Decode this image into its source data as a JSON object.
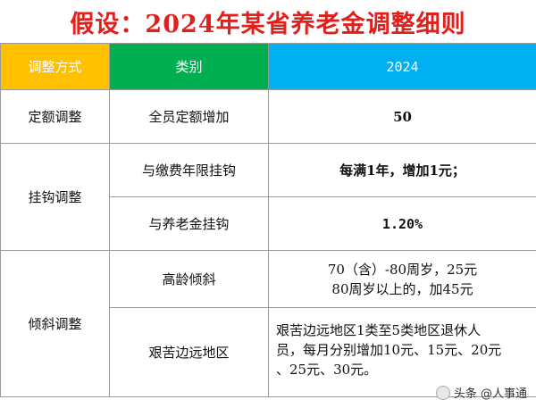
{
  "title": "假设：2024年某省养老金调整细则",
  "headers": {
    "col1": "调整方式",
    "col2": "类别",
    "col3": "2024"
  },
  "rows": {
    "fixed": {
      "mode": "定额调整",
      "category": "全员定额增加",
      "value": "50"
    },
    "linked": {
      "mode": "挂钩调整",
      "a_category": "与缴费年限挂钩",
      "a_value": "每满1年，增加1元；",
      "b_category": "与养老金挂钩",
      "b_value": "1.20%"
    },
    "tilt": {
      "mode": "倾斜调整",
      "a_category": "高龄倾斜",
      "a_value_line1": "70（含）-80周岁，25元",
      "a_value_line2": "80周岁以上的，加45元",
      "b_category": "艰苦边远地区",
      "b_value_line1": "艰苦边远地区1类至5类地区退休人",
      "b_value_line2": "员，每月分别增加10元、15元、20元",
      "b_value_line3": "、25元、30元。"
    }
  },
  "watermark": "头条 @人事通"
}
